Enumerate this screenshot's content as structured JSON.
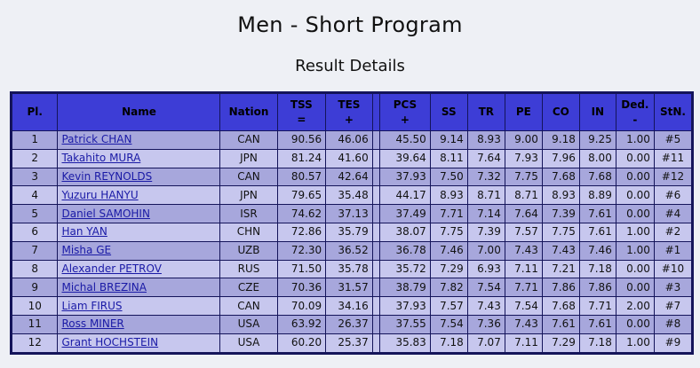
{
  "title": "Men - Short Program",
  "subtitle": "Result Details",
  "headers": {
    "pl": "Pl.",
    "name": "Name",
    "nation": "Nation",
    "tss1": "TSS",
    "tss2": "=",
    "tes1": "TES",
    "tes2": "+",
    "pcs1": "PCS",
    "pcs2": "+",
    "ss": "SS",
    "tr": "TR",
    "pe": "PE",
    "co": "CO",
    "in": "IN",
    "ded1": "Ded.",
    "ded2": "-",
    "stn": "StN."
  },
  "rows": [
    {
      "pl": "1",
      "name": "Patrick CHAN",
      "nation": "CAN",
      "tss": "90.56",
      "tes": "46.06",
      "pcs": "45.50",
      "ss": "9.14",
      "tr": "8.93",
      "pe": "9.00",
      "co": "9.18",
      "in": "9.25",
      "ded": "1.00",
      "stn": "#5"
    },
    {
      "pl": "2",
      "name": "Takahito MURA",
      "nation": "JPN",
      "tss": "81.24",
      "tes": "41.60",
      "pcs": "39.64",
      "ss": "8.11",
      "tr": "7.64",
      "pe": "7.93",
      "co": "7.96",
      "in": "8.00",
      "ded": "0.00",
      "stn": "#11"
    },
    {
      "pl": "3",
      "name": "Kevin REYNOLDS",
      "nation": "CAN",
      "tss": "80.57",
      "tes": "42.64",
      "pcs": "37.93",
      "ss": "7.50",
      "tr": "7.32",
      "pe": "7.75",
      "co": "7.68",
      "in": "7.68",
      "ded": "0.00",
      "stn": "#12"
    },
    {
      "pl": "4",
      "name": "Yuzuru HANYU",
      "nation": "JPN",
      "tss": "79.65",
      "tes": "35.48",
      "pcs": "44.17",
      "ss": "8.93",
      "tr": "8.71",
      "pe": "8.71",
      "co": "8.93",
      "in": "8.89",
      "ded": "0.00",
      "stn": "#6"
    },
    {
      "pl": "5",
      "name": "Daniel SAMOHIN",
      "nation": "ISR",
      "tss": "74.62",
      "tes": "37.13",
      "pcs": "37.49",
      "ss": "7.71",
      "tr": "7.14",
      "pe": "7.64",
      "co": "7.39",
      "in": "7.61",
      "ded": "0.00",
      "stn": "#4"
    },
    {
      "pl": "6",
      "name": "Han YAN",
      "nation": "CHN",
      "tss": "72.86",
      "tes": "35.79",
      "pcs": "38.07",
      "ss": "7.75",
      "tr": "7.39",
      "pe": "7.57",
      "co": "7.75",
      "in": "7.61",
      "ded": "1.00",
      "stn": "#2"
    },
    {
      "pl": "7",
      "name": "Misha GE",
      "nation": "UZB",
      "tss": "72.30",
      "tes": "36.52",
      "pcs": "36.78",
      "ss": "7.46",
      "tr": "7.00",
      "pe": "7.43",
      "co": "7.43",
      "in": "7.46",
      "ded": "1.00",
      "stn": "#1"
    },
    {
      "pl": "8",
      "name": "Alexander PETROV",
      "nation": "RUS",
      "tss": "71.50",
      "tes": "35.78",
      "pcs": "35.72",
      "ss": "7.29",
      "tr": "6.93",
      "pe": "7.11",
      "co": "7.21",
      "in": "7.18",
      "ded": "0.00",
      "stn": "#10"
    },
    {
      "pl": "9",
      "name": "Michal BREZINA",
      "nation": "CZE",
      "tss": "70.36",
      "tes": "31.57",
      "pcs": "38.79",
      "ss": "7.82",
      "tr": "7.54",
      "pe": "7.71",
      "co": "7.86",
      "in": "7.86",
      "ded": "0.00",
      "stn": "#3"
    },
    {
      "pl": "10",
      "name": "Liam FIRUS",
      "nation": "CAN",
      "tss": "70.09",
      "tes": "34.16",
      "pcs": "37.93",
      "ss": "7.57",
      "tr": "7.43",
      "pe": "7.54",
      "co": "7.68",
      "in": "7.71",
      "ded": "2.00",
      "stn": "#7"
    },
    {
      "pl": "11",
      "name": "Ross MINER",
      "nation": "USA",
      "tss": "63.92",
      "tes": "26.37",
      "pcs": "37.55",
      "ss": "7.54",
      "tr": "7.36",
      "pe": "7.43",
      "co": "7.61",
      "in": "7.61",
      "ded": "0.00",
      "stn": "#8"
    },
    {
      "pl": "12",
      "name": "Grant HOCHSTEIN",
      "nation": "USA",
      "tss": "60.20",
      "tes": "25.37",
      "pcs": "35.83",
      "ss": "7.18",
      "tr": "7.07",
      "pe": "7.11",
      "co": "7.29",
      "in": "7.18",
      "ded": "1.00",
      "stn": "#9"
    }
  ]
}
